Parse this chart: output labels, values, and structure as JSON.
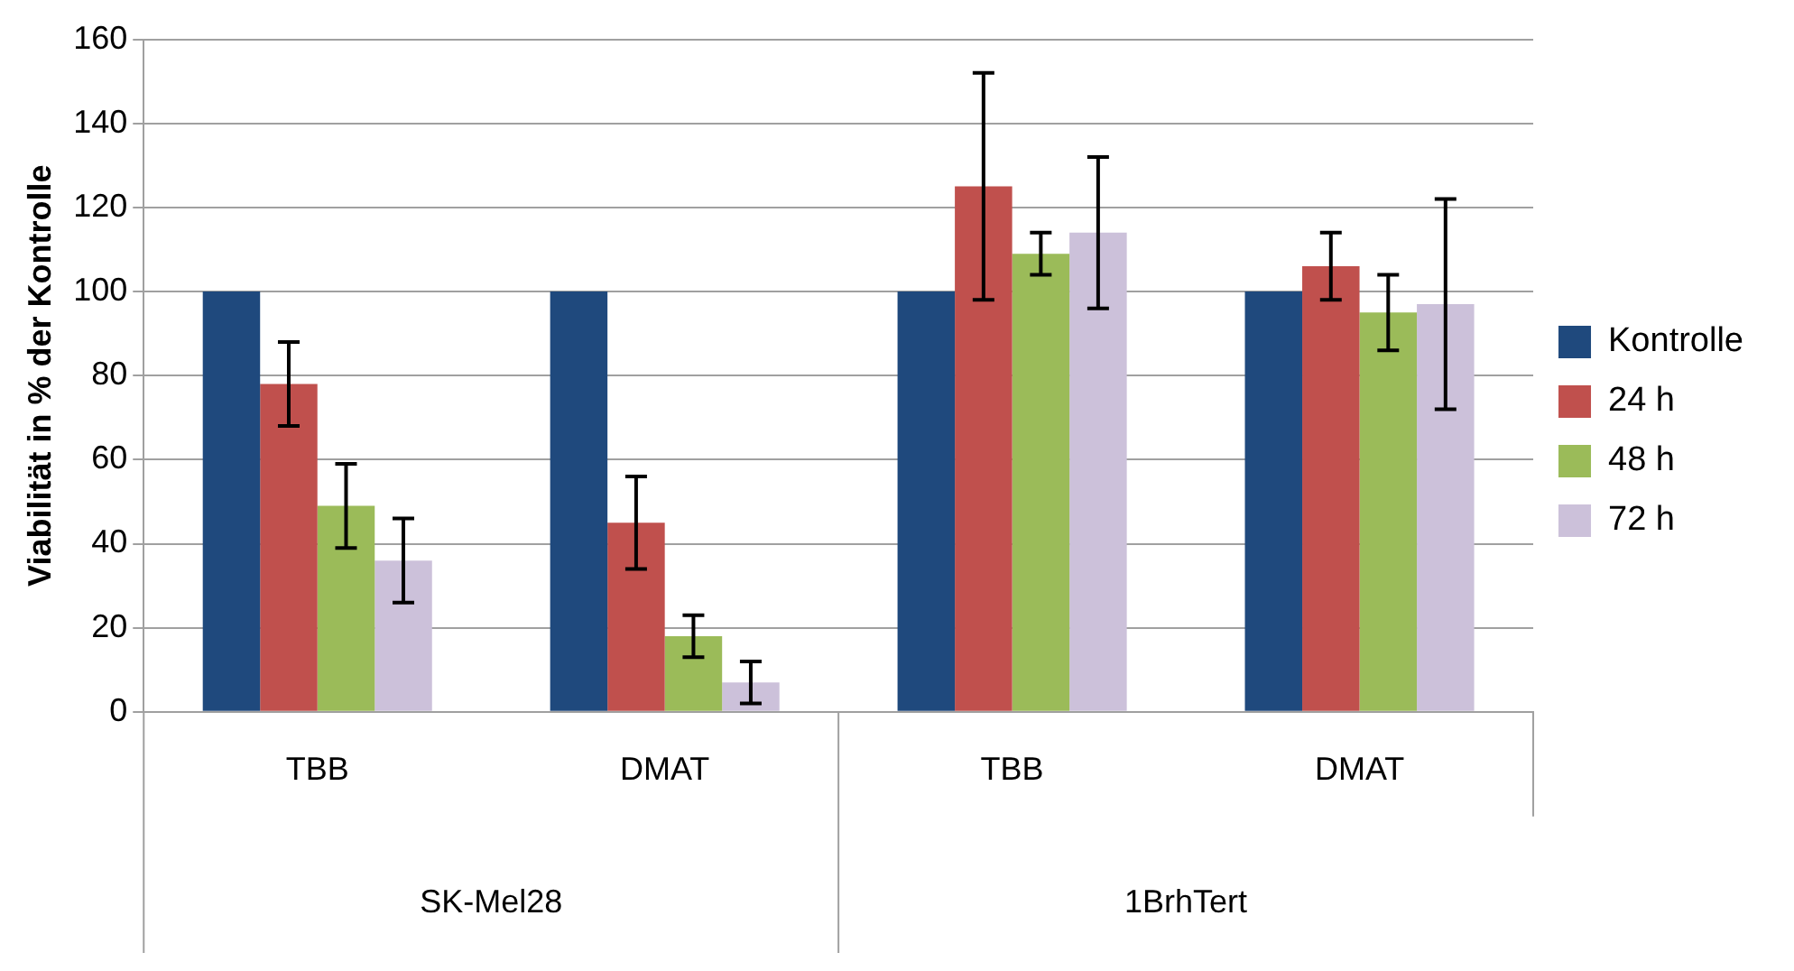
{
  "chart_data": {
    "type": "bar",
    "ylabel": "Viabilität in % der Kontrolle",
    "categories": [
      "TBB",
      "DMAT",
      "TBB",
      "DMAT"
    ],
    "annotations": [
      "SK-Mel28",
      "1BrhTert"
    ],
    "series": [
      {
        "name": "Kontrolle",
        "color": "#1f497d",
        "values": [
          100,
          100,
          100,
          100
        ]
      },
      {
        "name": "24 h",
        "color": "#c0504d",
        "values": [
          78,
          45,
          125,
          106
        ],
        "errors": [
          10,
          11,
          27,
          8
        ]
      },
      {
        "name": "48 h",
        "color": "#9bbb59",
        "values": [
          49,
          18,
          109,
          95
        ],
        "errors": [
          10,
          5,
          5,
          9
        ]
      },
      {
        "name": "72 h",
        "color": "#ccc1da",
        "values": [
          36,
          7,
          114,
          97
        ],
        "errors": [
          10,
          5,
          18,
          25
        ]
      }
    ],
    "ylim": [
      0,
      160
    ],
    "yticks": [
      0,
      20,
      40,
      60,
      80,
      100,
      120,
      140,
      160
    ],
    "grid": "y",
    "legend": "right"
  }
}
